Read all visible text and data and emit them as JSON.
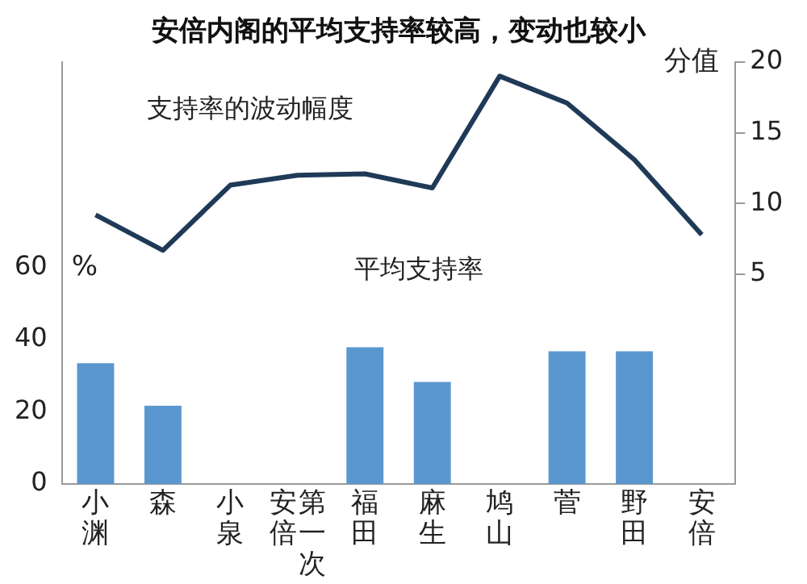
{
  "chart_data": {
    "type": "bar",
    "title": "安倍内阁的平均支持率较高，变动也较小",
    "ylabel": "%",
    "y2label": "分值",
    "categories": [
      "小渊",
      "森",
      "小泉",
      "安倍第一次",
      "福田",
      "麻生",
      "鸠山",
      "菅",
      "野田",
      "安倍"
    ],
    "series": [
      {
        "name": "平均支持率",
        "color": "#5b97cf",
        "values": [
          33.5,
          21.7,
          null,
          null,
          37.9,
          28.3,
          null,
          36.8,
          36.8,
          null
        ]
      },
      {
        "name": "支持率的波动幅度",
        "type": "line",
        "axis": "y2",
        "color": "#1f3a57",
        "values": [
          9.2,
          6.7,
          11.3,
          12.0,
          12.1,
          11.1,
          19.0,
          17.1,
          13.1,
          7.8
        ]
      }
    ],
    "ylim": [
      0,
      117
    ],
    "yticks": [
      0,
      20,
      40,
      60
    ],
    "y2lim": [
      -9.8,
      20
    ],
    "y2ticks": [
      5,
      10,
      15,
      20
    ],
    "grid": false,
    "legend": false,
    "marker": "none",
    "line_style": "solid"
  }
}
